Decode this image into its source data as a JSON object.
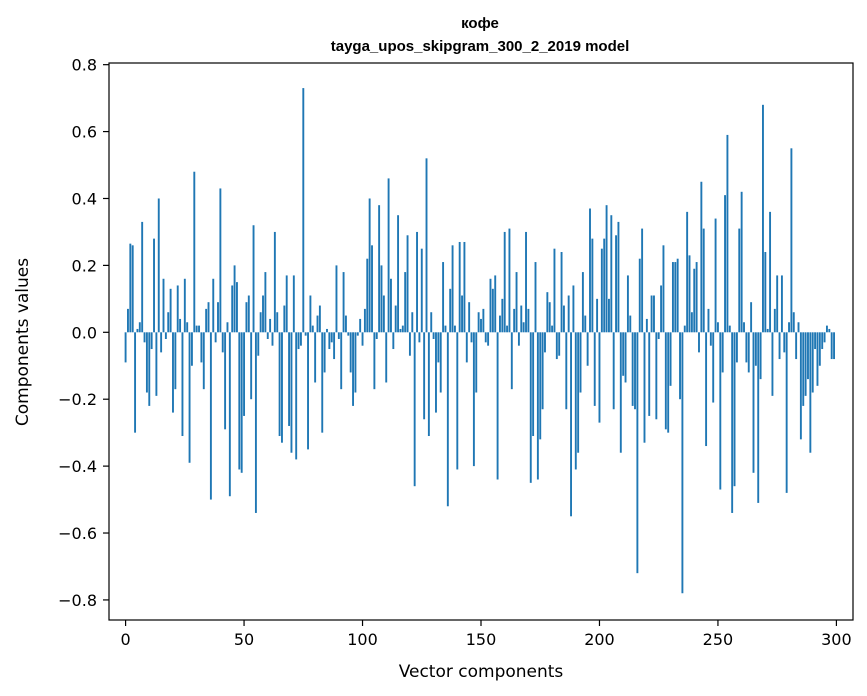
{
  "chart_data": {
    "type": "bar",
    "title": "кофе",
    "subtitle": "tayga_upos_skipgram_300_2_2019 model",
    "xlabel": "Vector components",
    "ylabel": "Components values",
    "xlim": [
      -7,
      307
    ],
    "ylim": [
      -0.86,
      0.805
    ],
    "xticks": [
      0,
      50,
      100,
      150,
      200,
      250,
      300
    ],
    "xtick_labels": [
      "0",
      "50",
      "100",
      "150",
      "200",
      "250",
      "300"
    ],
    "yticks": [
      0.8,
      0.6,
      0.4,
      0.2,
      0.0,
      -0.2,
      -0.4,
      -0.6,
      -0.8
    ],
    "ytick_labels": [
      "0.8",
      "0.6",
      "0.4",
      "0.2",
      "0.0",
      "−0.2",
      "−0.4",
      "−0.6",
      "−0.8"
    ],
    "bar_color": "#1f77b4",
    "x": "0..299",
    "values": [
      -0.09,
      0.07,
      0.265,
      0.26,
      -0.3,
      0.01,
      0.03,
      0.33,
      -0.03,
      -0.18,
      -0.22,
      -0.05,
      0.28,
      -0.19,
      0.4,
      -0.06,
      0.16,
      -0.02,
      0.06,
      0.13,
      -0.24,
      -0.17,
      0.14,
      0.04,
      -0.31,
      0.16,
      0.03,
      -0.39,
      -0.1,
      0.48,
      0.02,
      0.02,
      -0.09,
      -0.17,
      0.07,
      0.09,
      -0.5,
      0.16,
      -0.03,
      0.09,
      0.43,
      -0.06,
      -0.29,
      0.03,
      -0.49,
      0.14,
      0.2,
      0.15,
      -0.41,
      -0.42,
      -0.25,
      0.09,
      0.11,
      -0.2,
      0.32,
      -0.54,
      -0.07,
      0.06,
      0.11,
      0.18,
      -0.02,
      0.04,
      -0.04,
      0.3,
      0.06,
      -0.31,
      -0.33,
      0.08,
      0.17,
      -0.28,
      -0.36,
      0.17,
      -0.38,
      -0.05,
      -0.04,
      0.73,
      -0.01,
      -0.35,
      0.11,
      0.02,
      -0.15,
      0.05,
      0.08,
      -0.3,
      -0.12,
      0.01,
      -0.05,
      -0.03,
      -0.08,
      0.2,
      -0.02,
      -0.17,
      0.18,
      0.05,
      -0.01,
      -0.12,
      -0.22,
      -0.18,
      -0.01,
      0.04,
      -0.04,
      0.07,
      0.22,
      0.4,
      0.26,
      -0.17,
      -0.02,
      0.38,
      0.2,
      0.11,
      -0.15,
      0.46,
      0.16,
      -0.05,
      0.08,
      0.35,
      0.01,
      0.02,
      0.18,
      0.29,
      -0.07,
      0.06,
      -0.46,
      0.3,
      -0.03,
      0.25,
      -0.26,
      0.52,
      -0.31,
      0.06,
      -0.02,
      -0.24,
      -0.09,
      -0.18,
      0.21,
      0.02,
      -0.52,
      0.13,
      0.26,
      0.02,
      -0.41,
      0.27,
      0.11,
      0.27,
      -0.09,
      0.09,
      -0.03,
      -0.4,
      -0.18,
      0.06,
      0.04,
      0.07,
      -0.03,
      -0.04,
      0.16,
      0.13,
      0.17,
      -0.44,
      0.05,
      0.1,
      0.3,
      0.02,
      0.31,
      -0.17,
      0.07,
      0.18,
      -0.04,
      0.08,
      0.03,
      0.3,
      0.07,
      -0.45,
      -0.31,
      0.21,
      -0.44,
      -0.32,
      -0.23,
      -0.06,
      0.12,
      0.09,
      0.02,
      0.25,
      -0.08,
      -0.07,
      0.24,
      0.08,
      -0.23,
      0.11,
      -0.55,
      0.14,
      -0.41,
      -0.36,
      -0.18,
      0.18,
      0.05,
      -0.1,
      0.37,
      0.28,
      -0.22,
      0.1,
      -0.27,
      0.25,
      0.28,
      0.38,
      0.1,
      0.35,
      -0.23,
      0.29,
      0.33,
      -0.36,
      -0.13,
      -0.15,
      0.17,
      0.05,
      -0.22,
      -0.23,
      -0.72,
      0.22,
      0.31,
      -0.33,
      0.04,
      -0.25,
      0.11,
      0.11,
      -0.26,
      -0.02,
      0.14,
      0.26,
      -0.29,
      -0.3,
      -0.16,
      0.21,
      0.21,
      0.22,
      -0.2,
      -0.78,
      0.02,
      0.36,
      0.23,
      0.06,
      0.19,
      0.21,
      -0.06,
      0.45,
      0.31,
      -0.34,
      0.07,
      -0.04,
      -0.21,
      0.34,
      0.03,
      -0.47,
      -0.12,
      0.41,
      0.59,
      0.02,
      -0.54,
      -0.46,
      -0.09,
      0.31,
      0.42,
      0.03,
      -0.09,
      -0.12,
      0.09,
      -0.42,
      -0.1,
      -0.51,
      -0.14,
      0.68,
      0.24,
      0.01,
      0.36,
      -0.19,
      0.07,
      0.17,
      -0.08,
      0.17,
      -0.06,
      -0.48,
      0.03,
      0.55,
      0.06,
      -0.08,
      0.03,
      -0.32,
      -0.22,
      -0.19,
      -0.14,
      -0.36,
      -0.18,
      -0.05,
      -0.16,
      -0.1,
      -0.05,
      -0.03,
      0.02,
      0.01,
      -0.08,
      -0.08
    ]
  }
}
